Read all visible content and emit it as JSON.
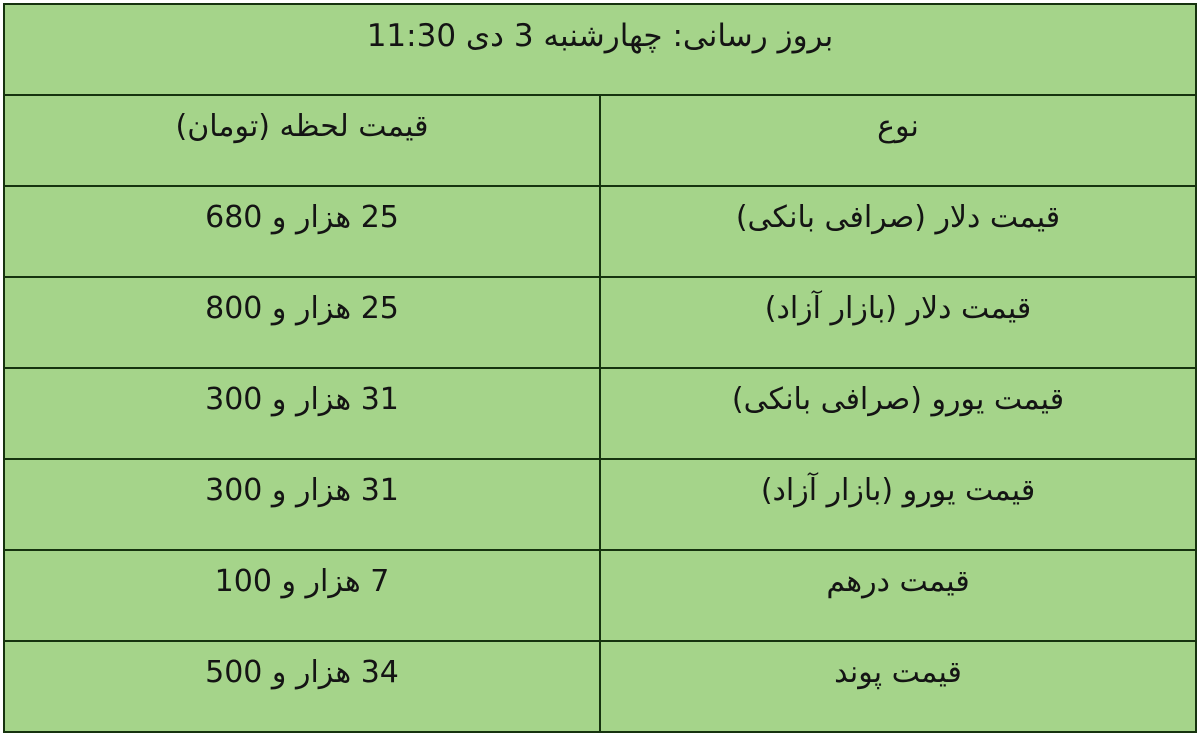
{
  "colors": {
    "table_background": "#a5d48a",
    "border": "#16330f",
    "text": "#141414",
    "page_background": "#ffffff"
  },
  "banner": {
    "text": "بروز رسانی: چهارشنبه 3 دی 11:30"
  },
  "table": {
    "columns": {
      "type_label": "نوع",
      "price_label": "قیمت لحظه (تومان)"
    },
    "rows": [
      {
        "type": "قیمت دلار (صرافی بانکی)",
        "price": "25 هزار و 680"
      },
      {
        "type": "قیمت دلار (بازار آزاد)",
        "price": "25 هزار و 800"
      },
      {
        "type": "قیمت یورو (صرافی بانکی)",
        "price": "31 هزار و 300"
      },
      {
        "type": "قیمت یورو (بازار آزاد)",
        "price": "31 هزار و 300"
      },
      {
        "type": "قیمت درهم",
        "price": "7 هزار و 100"
      },
      {
        "type": "قیمت پوند",
        "price": "34 هزار و 500"
      }
    ]
  },
  "chart_data": {
    "type": "table",
    "title": "بروز رسانی: چهارشنبه 3 دی 11:30",
    "columns": [
      "نوع",
      "قیمت لحظه (تومان)"
    ],
    "rows": [
      [
        "قیمت دلار (صرافی بانکی)",
        "25 هزار و 680"
      ],
      [
        "قیمت دلار (بازار آزاد)",
        "25 هزار و 800"
      ],
      [
        "قیمت یورو (صرافی بانکی)",
        "31 هزار و 300"
      ],
      [
        "قیمت یورو (بازار آزاد)",
        "31 هزار و 300"
      ],
      [
        "قیمت درهم",
        "7 هزار و 100"
      ],
      [
        "قیمت پوند",
        "34 هزار و 500"
      ]
    ],
    "values_toman": [
      25680,
      25800,
      31300,
      31300,
      7100,
      34500
    ],
    "layout_hints": {
      "direction": "rtl",
      "banner_row_spans_both_columns": true,
      "grid": true
    }
  }
}
